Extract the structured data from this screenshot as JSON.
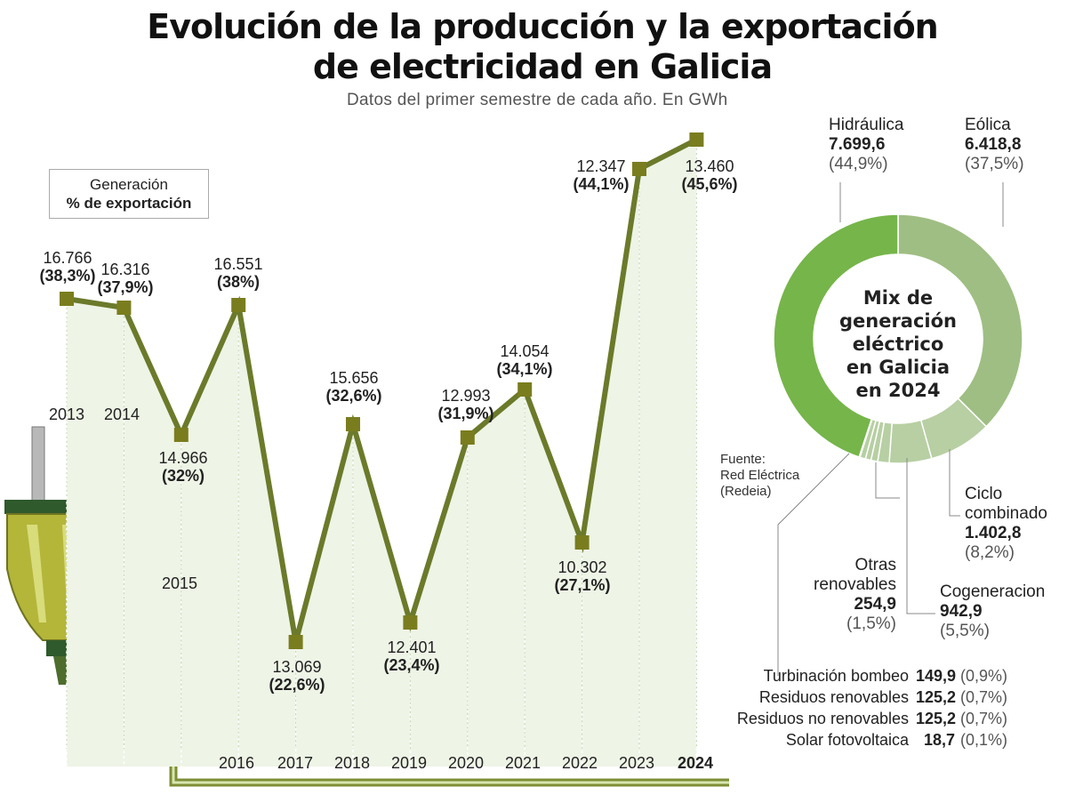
{
  "header": {
    "title_line1": "Evolución de la producción y la exportación",
    "title_line2": "de electricidad en Galicia",
    "subtitle": "Datos del primer semestre de cada año. En GWh"
  },
  "legend": {
    "line1": "Generación",
    "line2": "% de exportación"
  },
  "colors": {
    "line": "#6b7a2a",
    "marker": "#7a7d1e",
    "area": "#eef4e6",
    "hidro": "#76b54a",
    "eolica": "#9fbe83",
    "other": "#b7cfa3"
  },
  "chart_data": [
    {
      "type": "line",
      "categories": [
        "2013",
        "2014",
        "2015",
        "2016",
        "2017",
        "2018",
        "2019",
        "2020",
        "2021",
        "2022",
        "2023",
        "2024"
      ],
      "series": [
        {
          "values": [
            16766,
            16316,
            14966,
            16551,
            13069,
            15656,
            12401,
            12993,
            14054,
            10302,
            12347,
            13460
          ]
        },
        {
          "values": [
            38.3,
            37.9,
            32,
            38,
            22.6,
            32.6,
            23.4,
            31.9,
            34.1,
            27.1,
            44.1,
            45.6
          ]
        }
      ],
      "value_labels": [
        "16.766",
        "16.316",
        "14.966",
        "16.551",
        "13.069",
        "15.656",
        "12.401",
        "12.993",
        "14.054",
        "10.302",
        "12.347",
        "13.460"
      ],
      "pct_labels": [
        "(38,3%)",
        "(37,9%)",
        "(32%)",
        "(38%)",
        "(22,6%)",
        "(32,6%)",
        "(23,4%)",
        "(31,9%)",
        "(34,1%)",
        "(27,1%)",
        "(44,1%)",
        "(45,6%)"
      ]
    },
    {
      "type": "pie",
      "title": "Mix de generación eléctrico en Galicia en 2024",
      "labels": [
        "Hidráulica",
        "Eólica",
        "Ciclo combinado",
        "Cogeneracion",
        "Otras renovables",
        "Turbinación bombeo",
        "Residuos renovables",
        "Residuos no renovables",
        "Solar fotovoltaica"
      ],
      "values": [
        7699.6,
        6418.8,
        1402.8,
        942.9,
        254.9,
        149.9,
        125.2,
        125.2,
        18.7
      ],
      "value_labels": [
        "7.699,6",
        "6.418,8",
        "1.402,8",
        "942,9",
        "254,9",
        "149,9",
        "125,2",
        "125,2",
        "18,7"
      ],
      "pct_labels": [
        "(44,9%)",
        "(37,5%)",
        "(8,2%)",
        "(5,5%)",
        "(1,5%)",
        "(0,9%)",
        "(0,7%)",
        "(0,7%)",
        "(0,1%)"
      ]
    }
  ],
  "donut": {
    "center_lines": [
      "Mix de",
      "generación",
      "eléctrico",
      "en Galicia",
      "en 2024"
    ],
    "ciclo_line1": "Ciclo",
    "ciclo_line2": "combinado",
    "otras_line1": "Otras",
    "otras_line2": "renovables"
  },
  "source": {
    "line1": "Fuente:",
    "line2": "Red Eléctrica",
    "line3": "(Redeia)"
  }
}
